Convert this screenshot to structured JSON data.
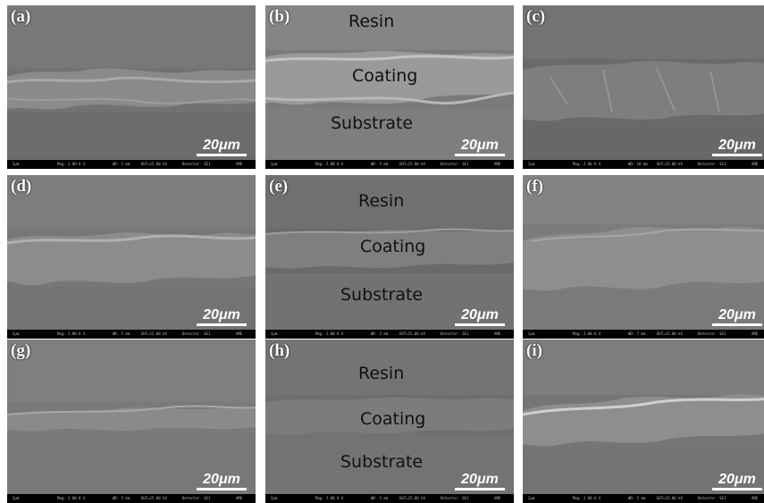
{
  "panels": [
    {
      "label": "(a)",
      "layers": null,
      "scale": "20μm",
      "info": {
        "unit": "2μm",
        "mag": "Mag- 2.00 K X",
        "wd": "WD- 5 mm",
        "eht": "EHT=15.00 kV",
        "detector": "Detector- SE1",
        "org": "AME"
      }
    },
    {
      "label": "(b)",
      "layers": {
        "resin": "Resin",
        "coating": "Coating",
        "substrate": "Substrate"
      },
      "scale": "20μm",
      "info": {
        "unit": "2μm",
        "mag": "Mag- 2.00 K X",
        "wd": "WD- 5 mm",
        "eht": "EHT=15.00 kV",
        "detector": "Detector- SE1",
        "org": "AME"
      }
    },
    {
      "label": "(c)",
      "layers": null,
      "scale": "20μm",
      "info": {
        "unit": "2μm",
        "mag": "Mag- 2.00 K X",
        "wd": "WD- 10 mm",
        "eht": "EHT=15.00 kV",
        "detector": "Detector- SE1",
        "org": "AME"
      }
    },
    {
      "label": "(d)",
      "layers": null,
      "scale": "20μm",
      "info": {
        "unit": "2μm",
        "mag": "Mag- 2.00 K X",
        "wd": "WD- 5 mm",
        "eht": "EHT=15.00 kV",
        "detector": "Detector- SE1",
        "org": "AME"
      }
    },
    {
      "label": "(e)",
      "layers": {
        "resin": "Resin",
        "coating": "Coating",
        "substrate": "Substrate"
      },
      "scale": "20μm",
      "info": {
        "unit": "2μm",
        "mag": "Mag- 2.00 K X",
        "wd": "WD- 5 mm",
        "eht": "EHT=15.00 kV",
        "detector": "Detector- SE1",
        "org": "AME"
      }
    },
    {
      "label": "(f)",
      "layers": null,
      "scale": "20μm",
      "info": {
        "unit": "2μm",
        "mag": "Mag- 2.00 K X",
        "wd": "WD- 7 mm",
        "eht": "EHT=15.00 kV",
        "detector": "Detector- SE1",
        "org": "AME"
      }
    },
    {
      "label": "(g)",
      "layers": null,
      "scale": "20μm",
      "info": {
        "unit": "2μm",
        "mag": "Mag- 2.00 K X",
        "wd": "WD- 5 mm",
        "eht": "EHT=15.00 kV",
        "detector": "Detector- SE1",
        "org": "AME"
      }
    },
    {
      "label": "(h)",
      "layers": {
        "resin": "Resin",
        "coating": "Coating",
        "substrate": "Substrate"
      },
      "scale": "20μm",
      "info": {
        "unit": "2μm",
        "mag": "Mag- 2.00 K X",
        "wd": "WD- 5 mm",
        "eht": "EHT=15.00 kV",
        "detector": "Detector- SE1",
        "org": "AME"
      }
    },
    {
      "label": "(i)",
      "layers": null,
      "scale": "20μm",
      "info": {
        "unit": "2μm",
        "mag": "Mag- 2.00 K X",
        "wd": "WD- 5 mm",
        "eht": "EHT=15.00 kV",
        "detector": "Detector- SE1",
        "org": "AME"
      }
    }
  ]
}
